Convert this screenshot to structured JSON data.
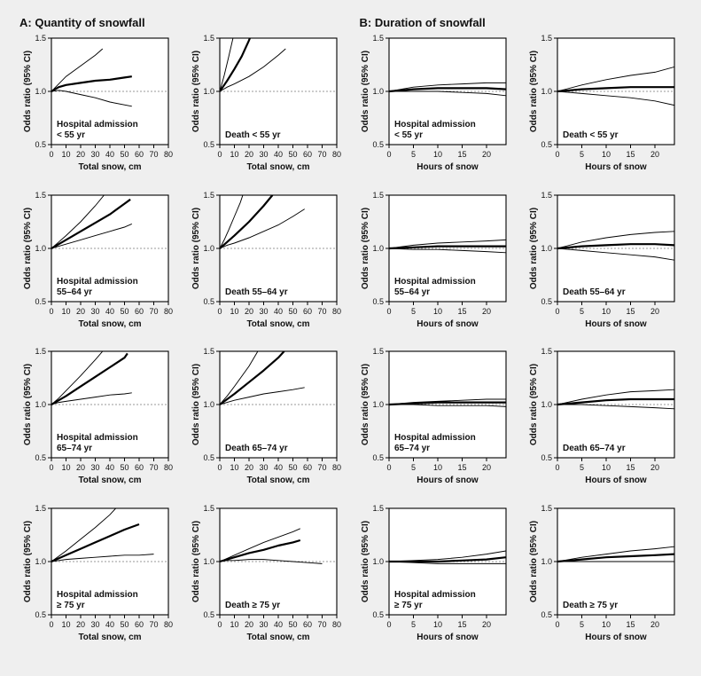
{
  "background_color": "#efefef",
  "panel_bg": "#ffffff",
  "frame_stroke": "#000000",
  "ref_line_color": "#777777",
  "main_line_color": "#000000",
  "ci_line_color": "#000000",
  "title_a": "A: Quantity of snowfall",
  "title_b": "B: Duration of snowfall",
  "ylabel": "Odds ratio (95% CI)",
  "xlabel_snow": "Total snow, cm",
  "xlabel_hours": "Hours of snow",
  "ylim": [
    0.5,
    1.5
  ],
  "yticks": [
    0.5,
    1.0,
    1.5
  ],
  "ytick_labels": [
    "0.5",
    "1.0",
    "1.5"
  ],
  "snow_xlim": [
    0,
    80
  ],
  "snow_xticks": [
    0,
    10,
    20,
    30,
    40,
    50,
    60,
    70,
    80
  ],
  "hours_xlim": [
    0,
    24
  ],
  "hours_xticks": [
    0,
    5,
    10,
    15,
    20
  ],
  "font_title_size": 13,
  "font_label_size": 10,
  "font_tick_size": 9,
  "main_line_width": 2.2,
  "ci_line_width": 0.95,
  "panels": [
    {
      "row": 0,
      "col": 0,
      "x_type": "snow",
      "inside_label_lines": [
        "Hospital admission",
        "< 55 yr"
      ],
      "main": [
        [
          0,
          1.0
        ],
        [
          5,
          1.04
        ],
        [
          10,
          1.06
        ],
        [
          20,
          1.08
        ],
        [
          30,
          1.1
        ],
        [
          40,
          1.11
        ],
        [
          50,
          1.13
        ],
        [
          55,
          1.14
        ]
      ],
      "upper": [
        [
          0,
          1.0
        ],
        [
          5,
          1.07
        ],
        [
          10,
          1.14
        ],
        [
          20,
          1.24
        ],
        [
          30,
          1.34
        ],
        [
          35,
          1.4
        ]
      ],
      "lower": [
        [
          0,
          1.0
        ],
        [
          5,
          1.01
        ],
        [
          10,
          1.0
        ],
        [
          20,
          0.97
        ],
        [
          30,
          0.94
        ],
        [
          40,
          0.9
        ],
        [
          55,
          0.86
        ]
      ]
    },
    {
      "row": 0,
      "col": 1,
      "x_type": "snow",
      "inside_label_lines": [
        "Death < 55 yr"
      ],
      "main": [
        [
          0,
          1.0
        ],
        [
          5,
          1.1
        ],
        [
          10,
          1.21
        ],
        [
          15,
          1.33
        ],
        [
          20,
          1.48
        ],
        [
          22,
          1.55
        ]
      ],
      "upper": [
        [
          0,
          1.0
        ],
        [
          3,
          1.15
        ],
        [
          6,
          1.32
        ],
        [
          9,
          1.5
        ],
        [
          10,
          1.55
        ]
      ],
      "lower": [
        [
          0,
          1.0
        ],
        [
          5,
          1.04
        ],
        [
          10,
          1.07
        ],
        [
          20,
          1.14
        ],
        [
          30,
          1.23
        ],
        [
          40,
          1.34
        ],
        [
          45,
          1.4
        ]
      ]
    },
    {
      "row": 0,
      "col": 2,
      "x_type": "hours",
      "inside_label_lines": [
        "Hospital admission",
        "< 55 yr"
      ],
      "main": [
        [
          0,
          1.0
        ],
        [
          5,
          1.02
        ],
        [
          10,
          1.03
        ],
        [
          15,
          1.03
        ],
        [
          20,
          1.03
        ],
        [
          24,
          1.02
        ]
      ],
      "upper": [
        [
          0,
          1.0
        ],
        [
          5,
          1.04
        ],
        [
          10,
          1.06
        ],
        [
          15,
          1.07
        ],
        [
          20,
          1.08
        ],
        [
          24,
          1.08
        ]
      ],
      "lower": [
        [
          0,
          1.0
        ],
        [
          5,
          1.0
        ],
        [
          10,
          1.0
        ],
        [
          15,
          0.99
        ],
        [
          20,
          0.98
        ],
        [
          24,
          0.96
        ]
      ]
    },
    {
      "row": 0,
      "col": 3,
      "x_type": "hours",
      "inside_label_lines": [
        "Death < 55 yr"
      ],
      "main": [
        [
          0,
          1.0
        ],
        [
          5,
          1.02
        ],
        [
          10,
          1.03
        ],
        [
          15,
          1.04
        ],
        [
          20,
          1.04
        ],
        [
          24,
          1.04
        ]
      ],
      "upper": [
        [
          0,
          1.0
        ],
        [
          5,
          1.06
        ],
        [
          10,
          1.11
        ],
        [
          15,
          1.15
        ],
        [
          20,
          1.18
        ],
        [
          24,
          1.23
        ]
      ],
      "lower": [
        [
          0,
          1.0
        ],
        [
          5,
          0.98
        ],
        [
          10,
          0.96
        ],
        [
          15,
          0.94
        ],
        [
          20,
          0.91
        ],
        [
          24,
          0.87
        ]
      ]
    },
    {
      "row": 1,
      "col": 0,
      "x_type": "snow",
      "inside_label_lines": [
        "Hospital admission",
        "55–64 yr"
      ],
      "main": [
        [
          0,
          1.0
        ],
        [
          5,
          1.04
        ],
        [
          10,
          1.08
        ],
        [
          20,
          1.16
        ],
        [
          30,
          1.24
        ],
        [
          40,
          1.32
        ],
        [
          50,
          1.42
        ],
        [
          54,
          1.46
        ]
      ],
      "upper": [
        [
          0,
          1.0
        ],
        [
          5,
          1.06
        ],
        [
          10,
          1.12
        ],
        [
          20,
          1.25
        ],
        [
          30,
          1.4
        ],
        [
          36,
          1.5
        ]
      ],
      "lower": [
        [
          0,
          1.0
        ],
        [
          5,
          1.02
        ],
        [
          10,
          1.04
        ],
        [
          20,
          1.08
        ],
        [
          30,
          1.12
        ],
        [
          40,
          1.16
        ],
        [
          50,
          1.2
        ],
        [
          55,
          1.23
        ]
      ]
    },
    {
      "row": 1,
      "col": 1,
      "x_type": "snow",
      "inside_label_lines": [
        "Death 55–64 yr"
      ],
      "main": [
        [
          0,
          1.0
        ],
        [
          5,
          1.06
        ],
        [
          10,
          1.12
        ],
        [
          20,
          1.25
        ],
        [
          30,
          1.4
        ],
        [
          36,
          1.5
        ]
      ],
      "upper": [
        [
          0,
          1.0
        ],
        [
          3,
          1.08
        ],
        [
          6,
          1.17
        ],
        [
          10,
          1.3
        ],
        [
          14,
          1.43
        ],
        [
          17,
          1.55
        ]
      ],
      "lower": [
        [
          0,
          1.0
        ],
        [
          5,
          1.03
        ],
        [
          10,
          1.05
        ],
        [
          20,
          1.1
        ],
        [
          30,
          1.16
        ],
        [
          40,
          1.22
        ],
        [
          50,
          1.3
        ],
        [
          58,
          1.37
        ]
      ]
    },
    {
      "row": 1,
      "col": 2,
      "x_type": "hours",
      "inside_label_lines": [
        "Hospital admission",
        "55–64 yr"
      ],
      "main": [
        [
          0,
          1.0
        ],
        [
          5,
          1.01
        ],
        [
          10,
          1.02
        ],
        [
          15,
          1.02
        ],
        [
          20,
          1.02
        ],
        [
          24,
          1.02
        ]
      ],
      "upper": [
        [
          0,
          1.0
        ],
        [
          5,
          1.03
        ],
        [
          10,
          1.05
        ],
        [
          15,
          1.06
        ],
        [
          20,
          1.07
        ],
        [
          24,
          1.08
        ]
      ],
      "lower": [
        [
          0,
          1.0
        ],
        [
          5,
          0.99
        ],
        [
          10,
          0.99
        ],
        [
          15,
          0.98
        ],
        [
          20,
          0.97
        ],
        [
          24,
          0.96
        ]
      ]
    },
    {
      "row": 1,
      "col": 3,
      "x_type": "hours",
      "inside_label_lines": [
        "Death 55–64 yr"
      ],
      "main": [
        [
          0,
          1.0
        ],
        [
          5,
          1.02
        ],
        [
          10,
          1.03
        ],
        [
          15,
          1.04
        ],
        [
          20,
          1.04
        ],
        [
          24,
          1.03
        ]
      ],
      "upper": [
        [
          0,
          1.0
        ],
        [
          5,
          1.06
        ],
        [
          10,
          1.1
        ],
        [
          15,
          1.13
        ],
        [
          20,
          1.15
        ],
        [
          24,
          1.16
        ]
      ],
      "lower": [
        [
          0,
          1.0
        ],
        [
          5,
          0.98
        ],
        [
          10,
          0.96
        ],
        [
          15,
          0.94
        ],
        [
          20,
          0.92
        ],
        [
          24,
          0.89
        ]
      ]
    },
    {
      "row": 2,
      "col": 0,
      "x_type": "snow",
      "inside_label_lines": [
        "Hospital admission",
        "65–74 yr"
      ],
      "main": [
        [
          0,
          1.0
        ],
        [
          5,
          1.04
        ],
        [
          10,
          1.08
        ],
        [
          20,
          1.17
        ],
        [
          30,
          1.26
        ],
        [
          40,
          1.35
        ],
        [
          50,
          1.44
        ],
        [
          52,
          1.48
        ]
      ],
      "upper": [
        [
          0,
          1.0
        ],
        [
          5,
          1.06
        ],
        [
          10,
          1.13
        ],
        [
          20,
          1.27
        ],
        [
          30,
          1.42
        ],
        [
          35,
          1.5
        ]
      ],
      "lower": [
        [
          0,
          1.0
        ],
        [
          5,
          1.02
        ],
        [
          10,
          1.03
        ],
        [
          20,
          1.05
        ],
        [
          30,
          1.07
        ],
        [
          40,
          1.09
        ],
        [
          50,
          1.1
        ],
        [
          55,
          1.11
        ]
      ]
    },
    {
      "row": 2,
      "col": 1,
      "x_type": "snow",
      "inside_label_lines": [
        "Death 65–74 yr"
      ],
      "main": [
        [
          0,
          1.0
        ],
        [
          5,
          1.05
        ],
        [
          10,
          1.1
        ],
        [
          20,
          1.21
        ],
        [
          30,
          1.32
        ],
        [
          40,
          1.44
        ],
        [
          44,
          1.5
        ]
      ],
      "upper": [
        [
          0,
          1.0
        ],
        [
          5,
          1.08
        ],
        [
          10,
          1.17
        ],
        [
          20,
          1.36
        ],
        [
          26,
          1.5
        ]
      ],
      "lower": [
        [
          0,
          1.0
        ],
        [
          5,
          1.02
        ],
        [
          10,
          1.04
        ],
        [
          20,
          1.07
        ],
        [
          30,
          1.1
        ],
        [
          40,
          1.12
        ],
        [
          50,
          1.14
        ],
        [
          58,
          1.16
        ]
      ]
    },
    {
      "row": 2,
      "col": 2,
      "x_type": "hours",
      "inside_label_lines": [
        "Hospital admission",
        "65–74 yr"
      ],
      "main": [
        [
          0,
          1.0
        ],
        [
          5,
          1.01
        ],
        [
          10,
          1.02
        ],
        [
          15,
          1.02
        ],
        [
          20,
          1.02
        ],
        [
          24,
          1.02
        ]
      ],
      "upper": [
        [
          0,
          1.0
        ],
        [
          5,
          1.02
        ],
        [
          10,
          1.03
        ],
        [
          15,
          1.04
        ],
        [
          20,
          1.05
        ],
        [
          24,
          1.05
        ]
      ],
      "lower": [
        [
          0,
          1.0
        ],
        [
          5,
          1.0
        ],
        [
          10,
          0.99
        ],
        [
          15,
          0.99
        ],
        [
          20,
          0.99
        ],
        [
          24,
          0.98
        ]
      ]
    },
    {
      "row": 2,
      "col": 3,
      "x_type": "hours",
      "inside_label_lines": [
        "Death 65–74 yr"
      ],
      "main": [
        [
          0,
          1.0
        ],
        [
          5,
          1.02
        ],
        [
          10,
          1.04
        ],
        [
          15,
          1.05
        ],
        [
          20,
          1.05
        ],
        [
          24,
          1.05
        ]
      ],
      "upper": [
        [
          0,
          1.0
        ],
        [
          5,
          1.05
        ],
        [
          10,
          1.09
        ],
        [
          15,
          1.12
        ],
        [
          20,
          1.13
        ],
        [
          24,
          1.14
        ]
      ],
      "lower": [
        [
          0,
          1.0
        ],
        [
          5,
          1.0
        ],
        [
          10,
          0.99
        ],
        [
          15,
          0.98
        ],
        [
          20,
          0.97
        ],
        [
          24,
          0.96
        ]
      ]
    },
    {
      "row": 3,
      "col": 0,
      "x_type": "snow",
      "inside_label_lines": [
        "Hospital admission",
        "≥ 75 yr"
      ],
      "main": [
        [
          0,
          1.0
        ],
        [
          5,
          1.03
        ],
        [
          10,
          1.06
        ],
        [
          20,
          1.12
        ],
        [
          30,
          1.18
        ],
        [
          40,
          1.24
        ],
        [
          50,
          1.3
        ],
        [
          60,
          1.35
        ]
      ],
      "upper": [
        [
          0,
          1.0
        ],
        [
          5,
          1.05
        ],
        [
          10,
          1.1
        ],
        [
          20,
          1.21
        ],
        [
          30,
          1.32
        ],
        [
          40,
          1.44
        ],
        [
          44,
          1.5
        ]
      ],
      "lower": [
        [
          0,
          1.0
        ],
        [
          5,
          1.01
        ],
        [
          10,
          1.02
        ],
        [
          20,
          1.03
        ],
        [
          30,
          1.04
        ],
        [
          40,
          1.05
        ],
        [
          50,
          1.06
        ],
        [
          60,
          1.06
        ],
        [
          70,
          1.07
        ]
      ]
    },
    {
      "row": 3,
      "col": 1,
      "x_type": "snow",
      "inside_label_lines": [
        "Death ≥ 75 yr"
      ],
      "main": [
        [
          0,
          1.0
        ],
        [
          5,
          1.02
        ],
        [
          10,
          1.04
        ],
        [
          20,
          1.08
        ],
        [
          30,
          1.11
        ],
        [
          40,
          1.15
        ],
        [
          50,
          1.18
        ],
        [
          55,
          1.2
        ]
      ],
      "upper": [
        [
          0,
          1.0
        ],
        [
          5,
          1.03
        ],
        [
          10,
          1.06
        ],
        [
          20,
          1.12
        ],
        [
          30,
          1.18
        ],
        [
          40,
          1.23
        ],
        [
          50,
          1.28
        ],
        [
          55,
          1.31
        ]
      ],
      "lower": [
        [
          0,
          1.0
        ],
        [
          5,
          1.01
        ],
        [
          10,
          1.01
        ],
        [
          20,
          1.02
        ],
        [
          30,
          1.02
        ],
        [
          40,
          1.01
        ],
        [
          50,
          1.0
        ],
        [
          60,
          0.99
        ],
        [
          70,
          0.98
        ]
      ]
    },
    {
      "row": 3,
      "col": 2,
      "x_type": "hours",
      "inside_label_lines": [
        "Hospital admission",
        "≥ 75 yr"
      ],
      "main": [
        [
          0,
          1.0
        ],
        [
          5,
          1.0
        ],
        [
          10,
          1.0
        ],
        [
          15,
          1.01
        ],
        [
          20,
          1.02
        ],
        [
          24,
          1.04
        ]
      ],
      "upper": [
        [
          0,
          1.0
        ],
        [
          5,
          1.01
        ],
        [
          10,
          1.02
        ],
        [
          15,
          1.04
        ],
        [
          20,
          1.07
        ],
        [
          24,
          1.1
        ]
      ],
      "lower": [
        [
          0,
          1.0
        ],
        [
          5,
          0.99
        ],
        [
          10,
          0.98
        ],
        [
          15,
          0.98
        ],
        [
          20,
          0.98
        ],
        [
          24,
          0.98
        ]
      ]
    },
    {
      "row": 3,
      "col": 3,
      "x_type": "hours",
      "inside_label_lines": [
        "Death ≥ 75 yr"
      ],
      "main": [
        [
          0,
          1.0
        ],
        [
          5,
          1.02
        ],
        [
          10,
          1.04
        ],
        [
          15,
          1.05
        ],
        [
          20,
          1.06
        ],
        [
          24,
          1.07
        ]
      ],
      "upper": [
        [
          0,
          1.0
        ],
        [
          5,
          1.04
        ],
        [
          10,
          1.07
        ],
        [
          15,
          1.1
        ],
        [
          20,
          1.12
        ],
        [
          24,
          1.14
        ]
      ],
      "lower": [
        [
          0,
          1.0
        ],
        [
          5,
          1.0
        ],
        [
          10,
          1.0
        ],
        [
          15,
          1.0
        ],
        [
          20,
          1.0
        ],
        [
          24,
          1.0
        ]
      ]
    }
  ]
}
